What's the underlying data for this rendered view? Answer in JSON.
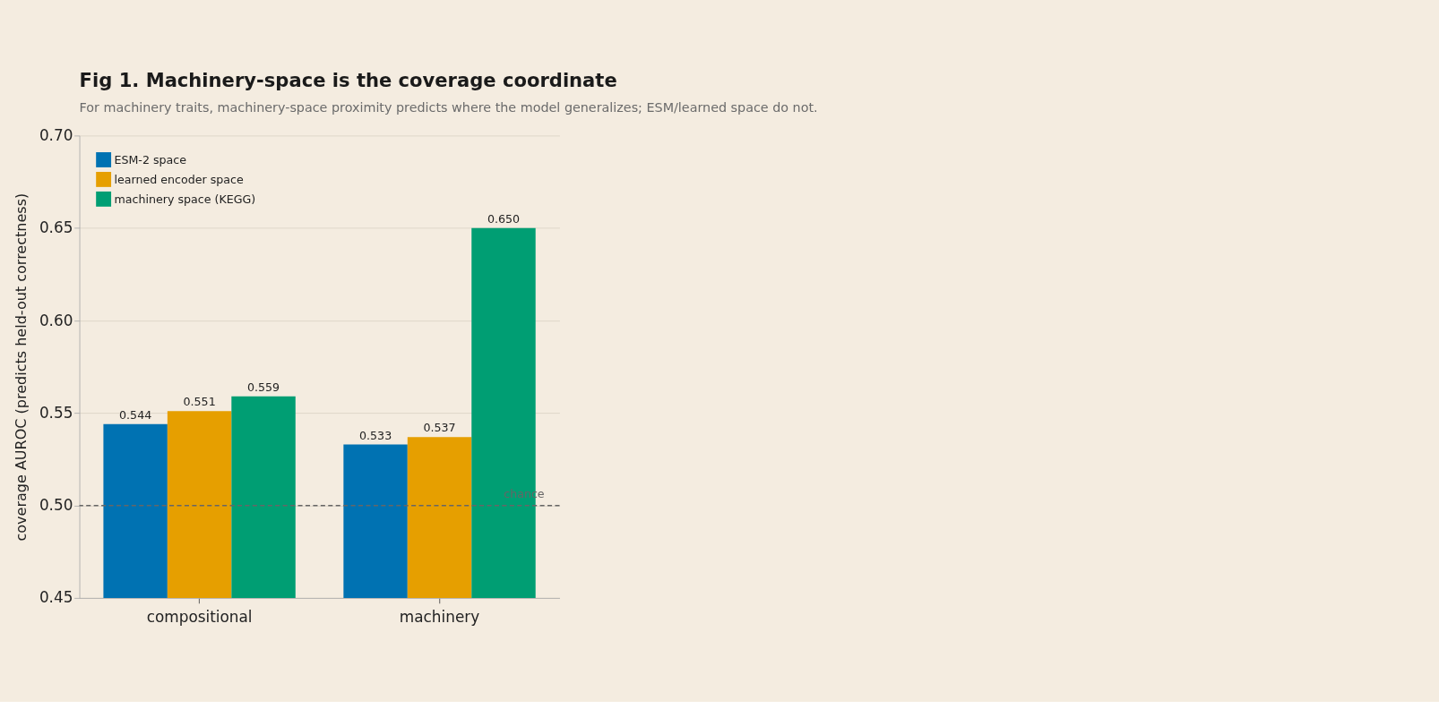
{
  "chart_data": {
    "type": "bar",
    "title": "Fig 1. Machinery-space is the coverage coordinate",
    "subtitle": "For machinery traits, machinery-space proximity predicts where the model generalizes; ESM/learned space do not.",
    "ylabel": "coverage AUROC (predicts held-out correctness)",
    "categories": [
      "compositional",
      "machinery"
    ],
    "series": [
      {
        "name": "ESM-2 space",
        "color": "#0072b2",
        "values": [
          0.544,
          0.533
        ],
        "value_labels": [
          "0.544",
          "0.533"
        ]
      },
      {
        "name": "learned encoder space",
        "color": "#e69f00",
        "values": [
          0.551,
          0.537
        ],
        "value_labels": [
          "0.551",
          "0.537"
        ]
      },
      {
        "name": "machinery space (KEGG)",
        "color": "#009e73",
        "values": [
          0.559,
          0.65
        ],
        "value_labels": [
          "0.559",
          "0.650"
        ]
      }
    ],
    "ylim": [
      0.45,
      0.7
    ],
    "yticks": [
      0.45,
      {
        "value": 0.5,
        "label": "0.50"
      },
      0.55,
      {
        "value": 0.6,
        "label": "0.60"
      },
      0.65,
      {
        "value": 0.7,
        "label": "0.70"
      }
    ],
    "ref_lines": [
      {
        "axis": "y",
        "value": 0.5,
        "label": "chance",
        "color": "#666666",
        "line_style": "dashed"
      }
    ],
    "grid": "y",
    "legend": "top left"
  }
}
